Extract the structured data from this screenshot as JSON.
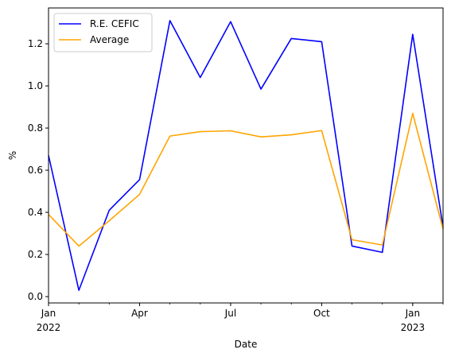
{
  "chart_data": {
    "type": "line",
    "title": "",
    "xlabel": "Date",
    "ylabel": "%",
    "x": [
      "2022-01",
      "2022-02",
      "2022-03",
      "2022-04",
      "2022-05",
      "2022-06",
      "2022-07",
      "2022-08",
      "2022-09",
      "2022-10",
      "2022-11",
      "2022-12",
      "2023-01",
      "2023-02"
    ],
    "xlim": [
      "2022-01",
      "2023-02"
    ],
    "ylim": [
      -0.03,
      1.37
    ],
    "yticks": [
      "0.0",
      "0.2",
      "0.4",
      "0.6",
      "0.8",
      "1.0",
      "1.2"
    ],
    "xticks": [
      {
        "x": "2022-01",
        "label": "Jan",
        "sublabel": "2022"
      },
      {
        "x": "2022-04",
        "label": "Apr",
        "sublabel": ""
      },
      {
        "x": "2022-07",
        "label": "Jul",
        "sublabel": ""
      },
      {
        "x": "2022-10",
        "label": "Oct",
        "sublabel": ""
      },
      {
        "x": "2023-01",
        "label": "Jan",
        "sublabel": "2023"
      }
    ],
    "grid": false,
    "legend_position": "top-left",
    "series": [
      {
        "name": "R.E. CEFIC",
        "color": "#0000ff",
        "values": [
          0.67,
          0.03,
          0.41,
          0.555,
          1.31,
          1.04,
          1.305,
          0.985,
          1.225,
          1.21,
          0.24,
          0.21,
          1.245,
          0.33
        ]
      },
      {
        "name": "Average",
        "color": "#ffa500",
        "values": [
          0.39,
          0.24,
          0.36,
          0.485,
          0.762,
          0.783,
          0.787,
          0.758,
          0.768,
          0.788,
          0.27,
          0.245,
          0.87,
          0.32
        ]
      }
    ]
  }
}
